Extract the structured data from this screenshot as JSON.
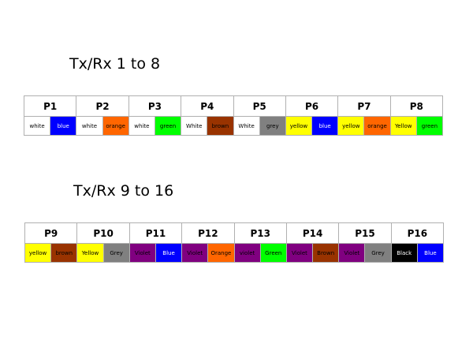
{
  "tables": [
    {
      "title": "Tx/Rx 1 to 8",
      "pairs": [
        {
          "label": "P1",
          "wires": [
            {
              "text": "white",
              "color": "#ffffff"
            },
            {
              "text": "blue",
              "color": "#0000ff"
            }
          ]
        },
        {
          "label": "P2",
          "wires": [
            {
              "text": "white",
              "color": "#ffffff"
            },
            {
              "text": "orange",
              "color": "#ff6600"
            }
          ]
        },
        {
          "label": "P3",
          "wires": [
            {
              "text": "white",
              "color": "#ffffff"
            },
            {
              "text": "green",
              "color": "#00ff00"
            }
          ]
        },
        {
          "label": "P4",
          "wires": [
            {
              "text": "White",
              "color": "#ffffff"
            },
            {
              "text": "brown",
              "color": "#993300"
            }
          ]
        },
        {
          "label": "P5",
          "wires": [
            {
              "text": "White",
              "color": "#ffffff"
            },
            {
              "text": "grey",
              "color": "#808080"
            }
          ]
        },
        {
          "label": "P6",
          "wires": [
            {
              "text": "yellow",
              "color": "#ffff00"
            },
            {
              "text": "blue",
              "color": "#0000ff"
            }
          ]
        },
        {
          "label": "P7",
          "wires": [
            {
              "text": "yellow",
              "color": "#ffff00"
            },
            {
              "text": "orange",
              "color": "#ff6600"
            }
          ]
        },
        {
          "label": "P8",
          "wires": [
            {
              "text": "Yellow",
              "color": "#ffff00"
            },
            {
              "text": "green",
              "color": "#00ff00"
            }
          ]
        }
      ]
    },
    {
      "title": "Tx/Rx 9 to 16",
      "pairs": [
        {
          "label": "P9",
          "wires": [
            {
              "text": "yellow",
              "color": "#ffff00"
            },
            {
              "text": "brown",
              "color": "#993300"
            }
          ]
        },
        {
          "label": "P10",
          "wires": [
            {
              "text": "Yellow",
              "color": "#ffff00"
            },
            {
              "text": "Grey",
              "color": "#808080"
            }
          ]
        },
        {
          "label": "P11",
          "wires": [
            {
              "text": "Violet",
              "color": "#800080"
            },
            {
              "text": "Blue",
              "color": "#0000ff"
            }
          ]
        },
        {
          "label": "P12",
          "wires": [
            {
              "text": "Violet",
              "color": "#800080"
            },
            {
              "text": "Orange",
              "color": "#ff6600"
            }
          ]
        },
        {
          "label": "P13",
          "wires": [
            {
              "text": "violet",
              "color": "#800080"
            },
            {
              "text": "Green",
              "color": "#00ff00"
            }
          ]
        },
        {
          "label": "P14",
          "wires": [
            {
              "text": "Violet",
              "color": "#800080"
            },
            {
              "text": "Brown",
              "color": "#993300"
            }
          ]
        },
        {
          "label": "P15",
          "wires": [
            {
              "text": "Violet",
              "color": "#800080"
            },
            {
              "text": "Grey",
              "color": "#808080"
            }
          ]
        },
        {
          "label": "P16",
          "wires": [
            {
              "text": "Black",
              "color": "#000000"
            },
            {
              "text": "Blue",
              "color": "#0000ff"
            }
          ]
        }
      ]
    }
  ]
}
